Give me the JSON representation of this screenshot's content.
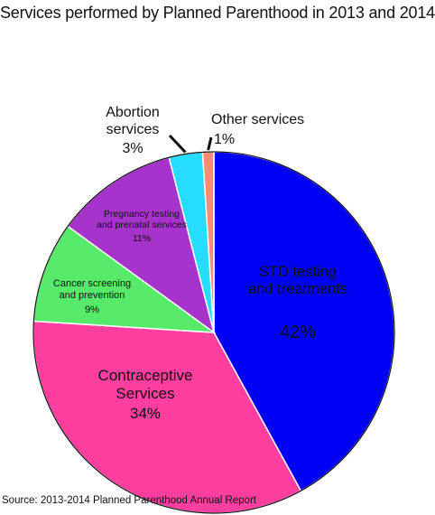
{
  "title": "Services performed by Planned Parenthood in 2013 and 2014",
  "source": "Source: 2013-2014 Planned Parenthood Annual Report",
  "chart_data": {
    "type": "pie",
    "title": "Services performed by Planned Parenthood in 2013 and 2014",
    "slices": [
      {
        "label": "STD testing and treatments",
        "text": "STD testing\nand treatments",
        "pct_label": "42%",
        "value": 42,
        "color": "#0000f4"
      },
      {
        "label": "Contraceptive Services",
        "text": "Contraceptive\nServices",
        "pct_label": "34%",
        "value": 34,
        "color": "#ff3fa0"
      },
      {
        "label": "Cancer screening and prevention",
        "text": "Cancer screening\nand prevention",
        "pct_label": "9%",
        "value": 9,
        "color": "#57ea6a"
      },
      {
        "label": "Pregnancy testing and prenatal services",
        "text": "Pregnancy testing\nand prenatal services",
        "pct_label": "11%",
        "value": 11,
        "color": "#a633cc"
      },
      {
        "label": "Abortion services",
        "text": "Abortion\nservices",
        "pct_label": "3%",
        "value": 3,
        "color": "#27ddff"
      },
      {
        "label": "Other services",
        "text": "Other services",
        "pct_label": "1%",
        "value": 1,
        "color": "#ff8a76"
      }
    ],
    "start": "12 o'clock",
    "direction": "clockwise",
    "legend": "none"
  }
}
